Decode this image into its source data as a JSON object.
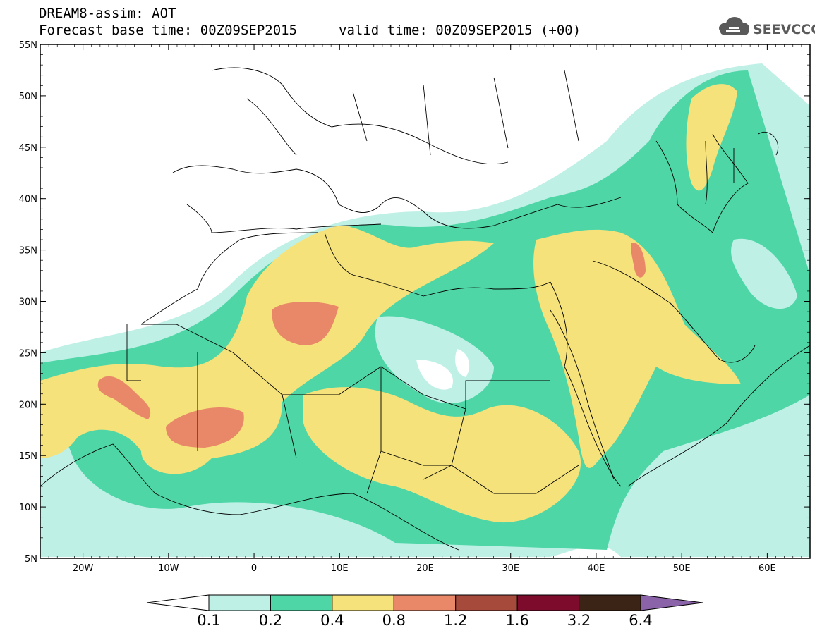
{
  "header": {
    "title": "DREAM8-assim: AOT",
    "base_time": "Forecast base time: 00Z09SEP2015",
    "valid_time": "valid time: 00Z09SEP2015 (+00)"
  },
  "logo": {
    "text": "SEEVCCC",
    "icon": "cloud-icon",
    "color": "#555555"
  },
  "map": {
    "lat_labels": [
      "55N",
      "50N",
      "45N",
      "40N",
      "35N",
      "30N",
      "25N",
      "20N",
      "15N",
      "10N",
      "5N"
    ],
    "lon_labels": [
      "20W",
      "10W",
      "0",
      "10E",
      "20E",
      "30E",
      "40E",
      "50E",
      "60E"
    ],
    "lon_range": [
      -25,
      65
    ],
    "lat_range": [
      5,
      55
    ],
    "variable": "AOT"
  },
  "colorbar": {
    "labels": [
      "0.1",
      "0.2",
      "0.4",
      "0.8",
      "1.2",
      "1.6",
      "3.2",
      "6.4"
    ],
    "colors": [
      "#ffffff",
      "#bff0e6",
      "#4fd6a6",
      "#f5e27a",
      "#e98868",
      "#a64a3c",
      "#7c0b2c",
      "#3b2416",
      "#8a63a8"
    ]
  }
}
